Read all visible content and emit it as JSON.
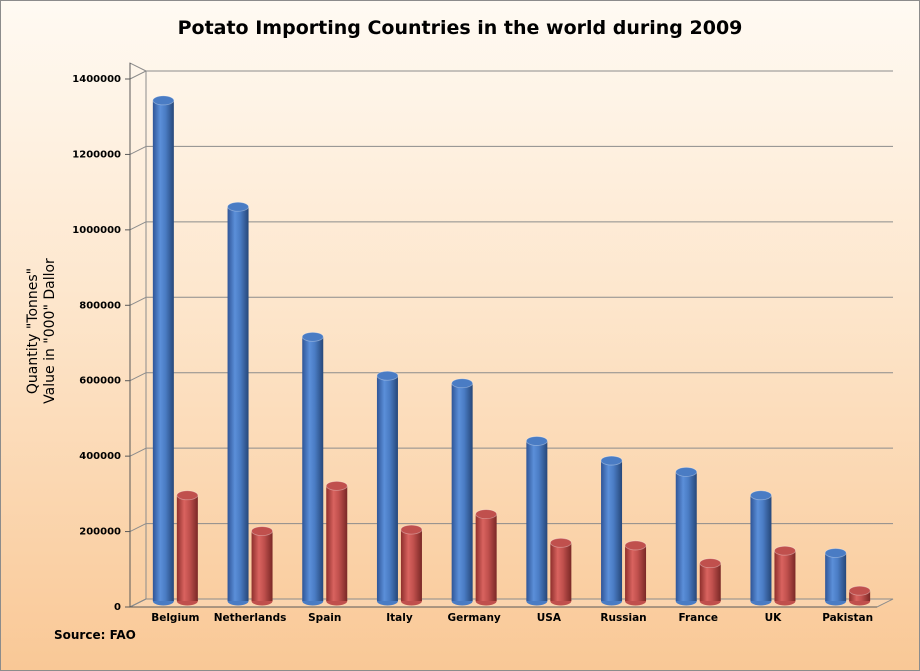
{
  "chart_data": {
    "type": "bar",
    "title": "Potato Importing Countries in the world during 2009",
    "ylabel_lines": [
      "Quantity \"Tonnes\"",
      "Value in \"000\" Dallor"
    ],
    "source": "Source: FAO",
    "categories": [
      "Belgium",
      "Netherlands",
      "Spain",
      "Italy",
      "Germany",
      "USA",
      "Russian",
      "France",
      "UK",
      "Pakistan"
    ],
    "series": [
      {
        "color": "#4a7cc4",
        "values": [
          1330000,
          1048000,
          703000,
          600000,
          580000,
          427000,
          375000,
          345000,
          283000,
          130000
        ]
      },
      {
        "color": "#c0504d",
        "values": [
          283000,
          188000,
          308000,
          192000,
          233000,
          157000,
          150000,
          103000,
          136000,
          30000
        ]
      }
    ],
    "yticks": [
      "0",
      "200000",
      "400000",
      "600000",
      "800000",
      "1000000",
      "1200000",
      "1400000"
    ],
    "ylim": [
      0,
      1400000
    ],
    "grid": true,
    "legend": "none"
  }
}
